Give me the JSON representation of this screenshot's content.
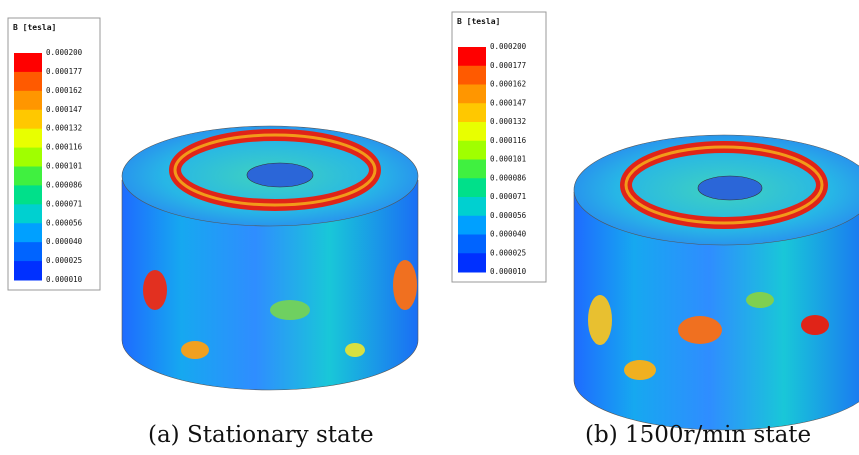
{
  "panels": [
    {
      "legend": {
        "title": "B [tesla]",
        "labels": [
          "0.000200",
          "0.000177",
          "0.000162",
          "0.000147",
          "0.000132",
          "0.000116",
          "0.000101",
          "0.000086",
          "0.000071",
          "0.000056",
          "0.000040",
          "0.000025",
          "0.000010"
        ]
      },
      "caption": "(a) Stationary state"
    },
    {
      "legend": {
        "title": "B [tesla]",
        "labels": [
          "0.000200",
          "0.000177",
          "0.000162",
          "0.000147",
          "0.000132",
          "0.000116",
          "0.000101",
          "0.000086",
          "0.000071",
          "0.000056",
          "0.000040",
          "0.000025",
          "0.000010"
        ]
      },
      "caption": "(b) 1500r/min state"
    }
  ]
}
